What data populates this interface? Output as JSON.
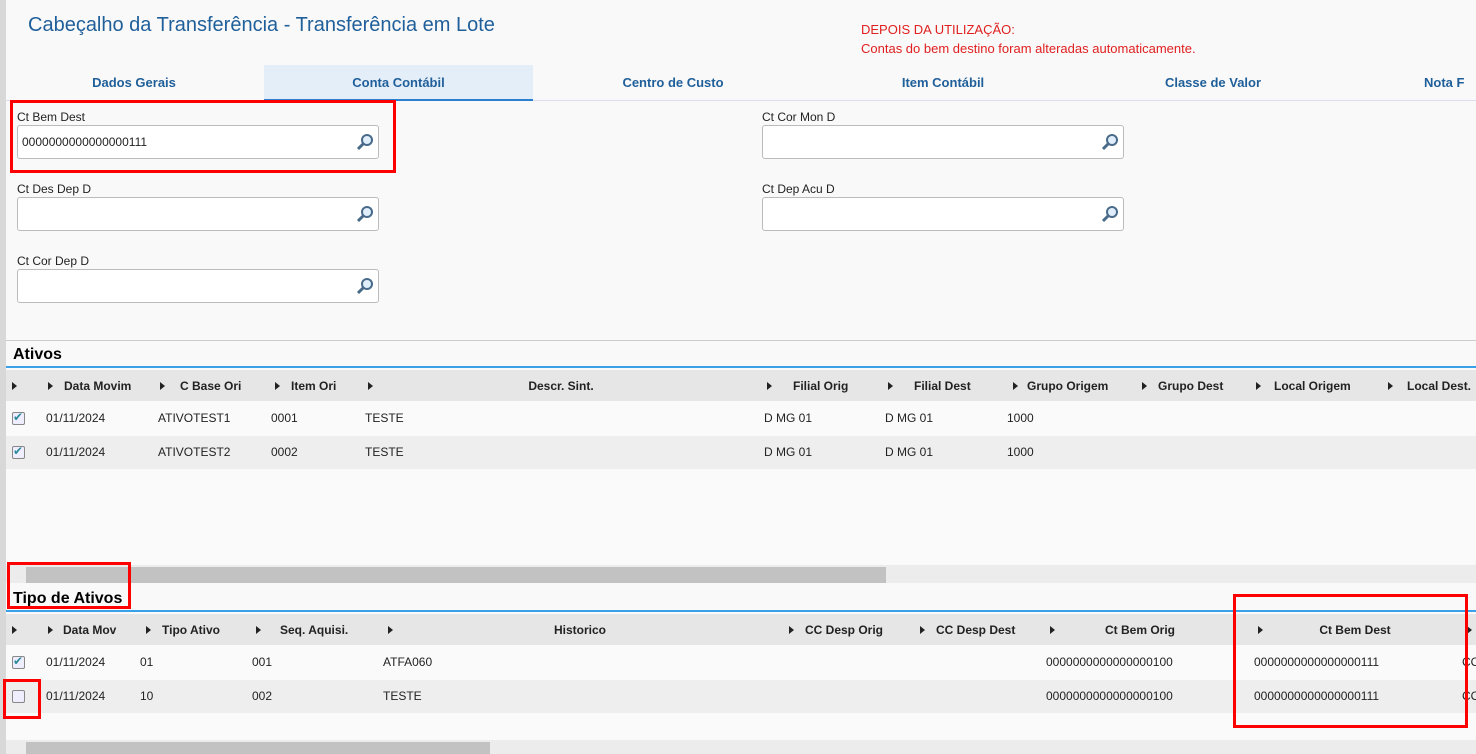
{
  "header": {
    "title": "Cabeçalho da Transferência - Transferência em Lote",
    "note_line1": "DEPOIS DA UTILIZAÇÃO:",
    "note_line2": "Contas do bem destino foram alteradas automaticamente."
  },
  "tabs": [
    {
      "label": "Dados Gerais"
    },
    {
      "label": "Conta Contábil",
      "active": true
    },
    {
      "label": "Centro de Custo"
    },
    {
      "label": "Item Contábil"
    },
    {
      "label": "Classe de Valor"
    },
    {
      "label": "Nota F"
    }
  ],
  "fields": {
    "ct_bem_dest": {
      "label": "Ct Bem Dest",
      "value": "0000000000000000111"
    },
    "ct_cor_mon_d": {
      "label": "Ct Cor Mon D",
      "value": ""
    },
    "ct_des_dep_d": {
      "label": "Ct Des Dep D",
      "value": ""
    },
    "ct_dep_acu_d": {
      "label": "Ct Dep Acu D",
      "value": ""
    },
    "ct_cor_dep_d": {
      "label": "Ct Cor Dep D",
      "value": ""
    }
  },
  "ativos": {
    "title": "Ativos",
    "columns": [
      "Data Movim",
      "C Base Ori",
      "Item Ori",
      "Descr. Sint.",
      "Filial Orig",
      "Filial Dest",
      "Grupo Origem",
      "Grupo Dest",
      "Local Origem",
      "Local Dest."
    ],
    "rows": [
      {
        "checked": true,
        "cells": [
          "01/11/2024",
          "ATIVOTEST1",
          "0001",
          "TESTE",
          "D MG 01",
          "D MG 01",
          "1000"
        ]
      },
      {
        "checked": true,
        "cells": [
          "01/11/2024",
          "ATIVOTEST2",
          "0002",
          "TESTE",
          "D MG 01",
          "D MG 01",
          "1000"
        ]
      }
    ]
  },
  "tipo_ativos": {
    "title": "Tipo de Ativos",
    "columns": [
      "Data Mov",
      "Tipo Ativo",
      "Seq. Aquisi.",
      "Historico",
      "CC Desp Orig",
      "CC Desp Dest",
      "Ct Bem Orig",
      "Ct Bem Dest"
    ],
    "rows": [
      {
        "checked": true,
        "cells": [
          "01/11/2024",
          "01",
          "001",
          "ATFA060",
          "0000000000000000100",
          "0000000000000000111",
          "CO"
        ]
      },
      {
        "checked": false,
        "cells": [
          "01/11/2024",
          "10",
          "002",
          "TESTE",
          "0000000000000000100",
          "0000000000000000111",
          "CO"
        ]
      }
    ]
  },
  "colors": {
    "accent": "#1f5f9a",
    "highlight": "#ff0000",
    "section_line": "#3aa0e8"
  }
}
